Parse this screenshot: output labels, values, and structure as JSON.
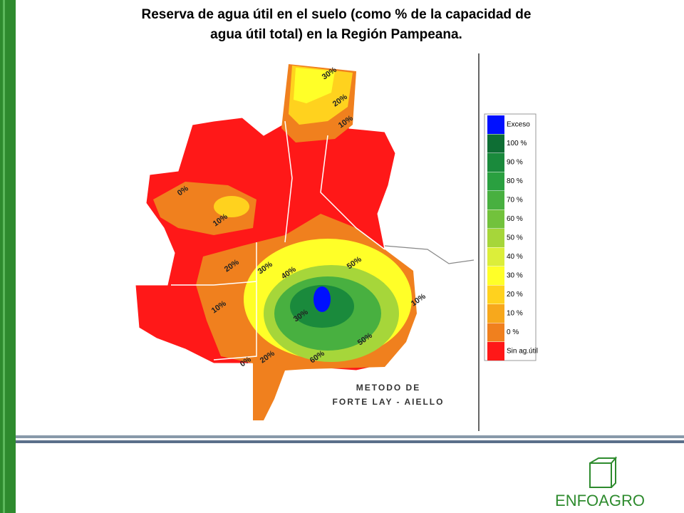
{
  "header": {
    "title_line1": "Reserva de agua útil en el suelo (como % de la capacidad de",
    "title_line2": "agua útil total) en la Región Pampeana."
  },
  "map": {
    "contour_labels": [
      "30%",
      "20%",
      "10%",
      "0%",
      "10%",
      "20%",
      "30%",
      "40%",
      "50%",
      "60%",
      "30%",
      "50%",
      "10%",
      "20%",
      "0%",
      "10%"
    ],
    "method_line1": "METODO DE",
    "method_line2": "FORTE LAY - AIELLO"
  },
  "legend": {
    "items": [
      {
        "label": "Exceso",
        "color": "#0010ff"
      },
      {
        "label": "100 %",
        "color": "#0e6e34"
      },
      {
        "label": "90 %",
        "color": "#1a8a3c"
      },
      {
        "label": "80 %",
        "color": "#2aa040"
      },
      {
        "label": "70 %",
        "color": "#48b040"
      },
      {
        "label": "60 %",
        "color": "#72c23c"
      },
      {
        "label": "50 %",
        "color": "#a6d63a"
      },
      {
        "label": "40 %",
        "color": "#dcee3a"
      },
      {
        "label": "30 %",
        "color": "#ffff28"
      },
      {
        "label": "20 %",
        "color": "#ffd21e"
      },
      {
        "label": "10 %",
        "color": "#f7a81c"
      },
      {
        "label": "0 %",
        "color": "#f0801e"
      },
      {
        "label": "Sin ag.útil",
        "color": "#ff1818"
      }
    ]
  },
  "logo": {
    "text": "ENFOAGRO"
  }
}
